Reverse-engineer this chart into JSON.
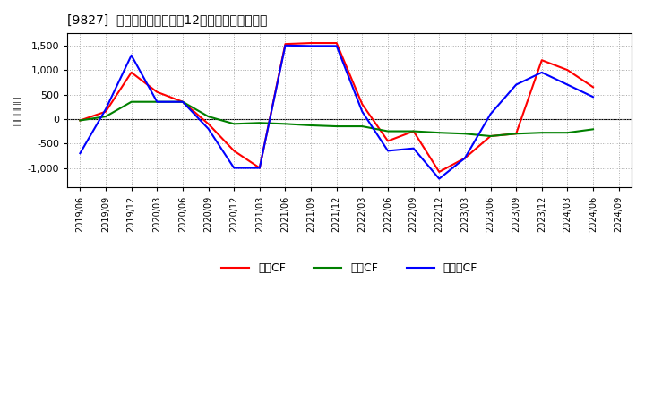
{
  "title": "[9827]  キャッシュフローの12か月移動合計の推移",
  "ylabel": "（百万円）",
  "background_color": "#ffffff",
  "plot_bg_color": "#ffffff",
  "grid_color": "#aaaaaa",
  "x_labels": [
    "2019/06",
    "2019/09",
    "2019/12",
    "2020/03",
    "2020/06",
    "2020/09",
    "2020/12",
    "2021/03",
    "2021/06",
    "2021/09",
    "2021/12",
    "2022/03",
    "2022/06",
    "2022/09",
    "2022/12",
    "2023/03",
    "2023/06",
    "2023/09",
    "2023/12",
    "2024/03",
    "2024/06",
    "2024/09"
  ],
  "operating_cf": [
    -30,
    150,
    950,
    550,
    350,
    -100,
    -650,
    -1000,
    1530,
    1550,
    1550,
    300,
    -450,
    -250,
    -1080,
    -800,
    -350,
    -300,
    1200,
    1000,
    650,
    null
  ],
  "investing_cf": [
    -30,
    50,
    350,
    350,
    350,
    50,
    -100,
    -80,
    -100,
    -130,
    -150,
    -150,
    -250,
    -250,
    -280,
    -300,
    -350,
    -300,
    -280,
    -280,
    -210,
    null
  ],
  "free_cf": [
    -700,
    200,
    1300,
    350,
    350,
    -200,
    -1000,
    -1000,
    1500,
    1490,
    1490,
    150,
    -650,
    -600,
    -1220,
    -800,
    100,
    700,
    950,
    700,
    450,
    null
  ],
  "operating_color": "#ff0000",
  "investing_color": "#008000",
  "free_color": "#0000ff",
  "ylim": [
    -1400,
    1750
  ],
  "yticks": [
    -1000,
    -500,
    0,
    500,
    1000,
    1500
  ],
  "legend_labels": [
    "営業CF",
    "投資CF",
    "フリーCF"
  ]
}
